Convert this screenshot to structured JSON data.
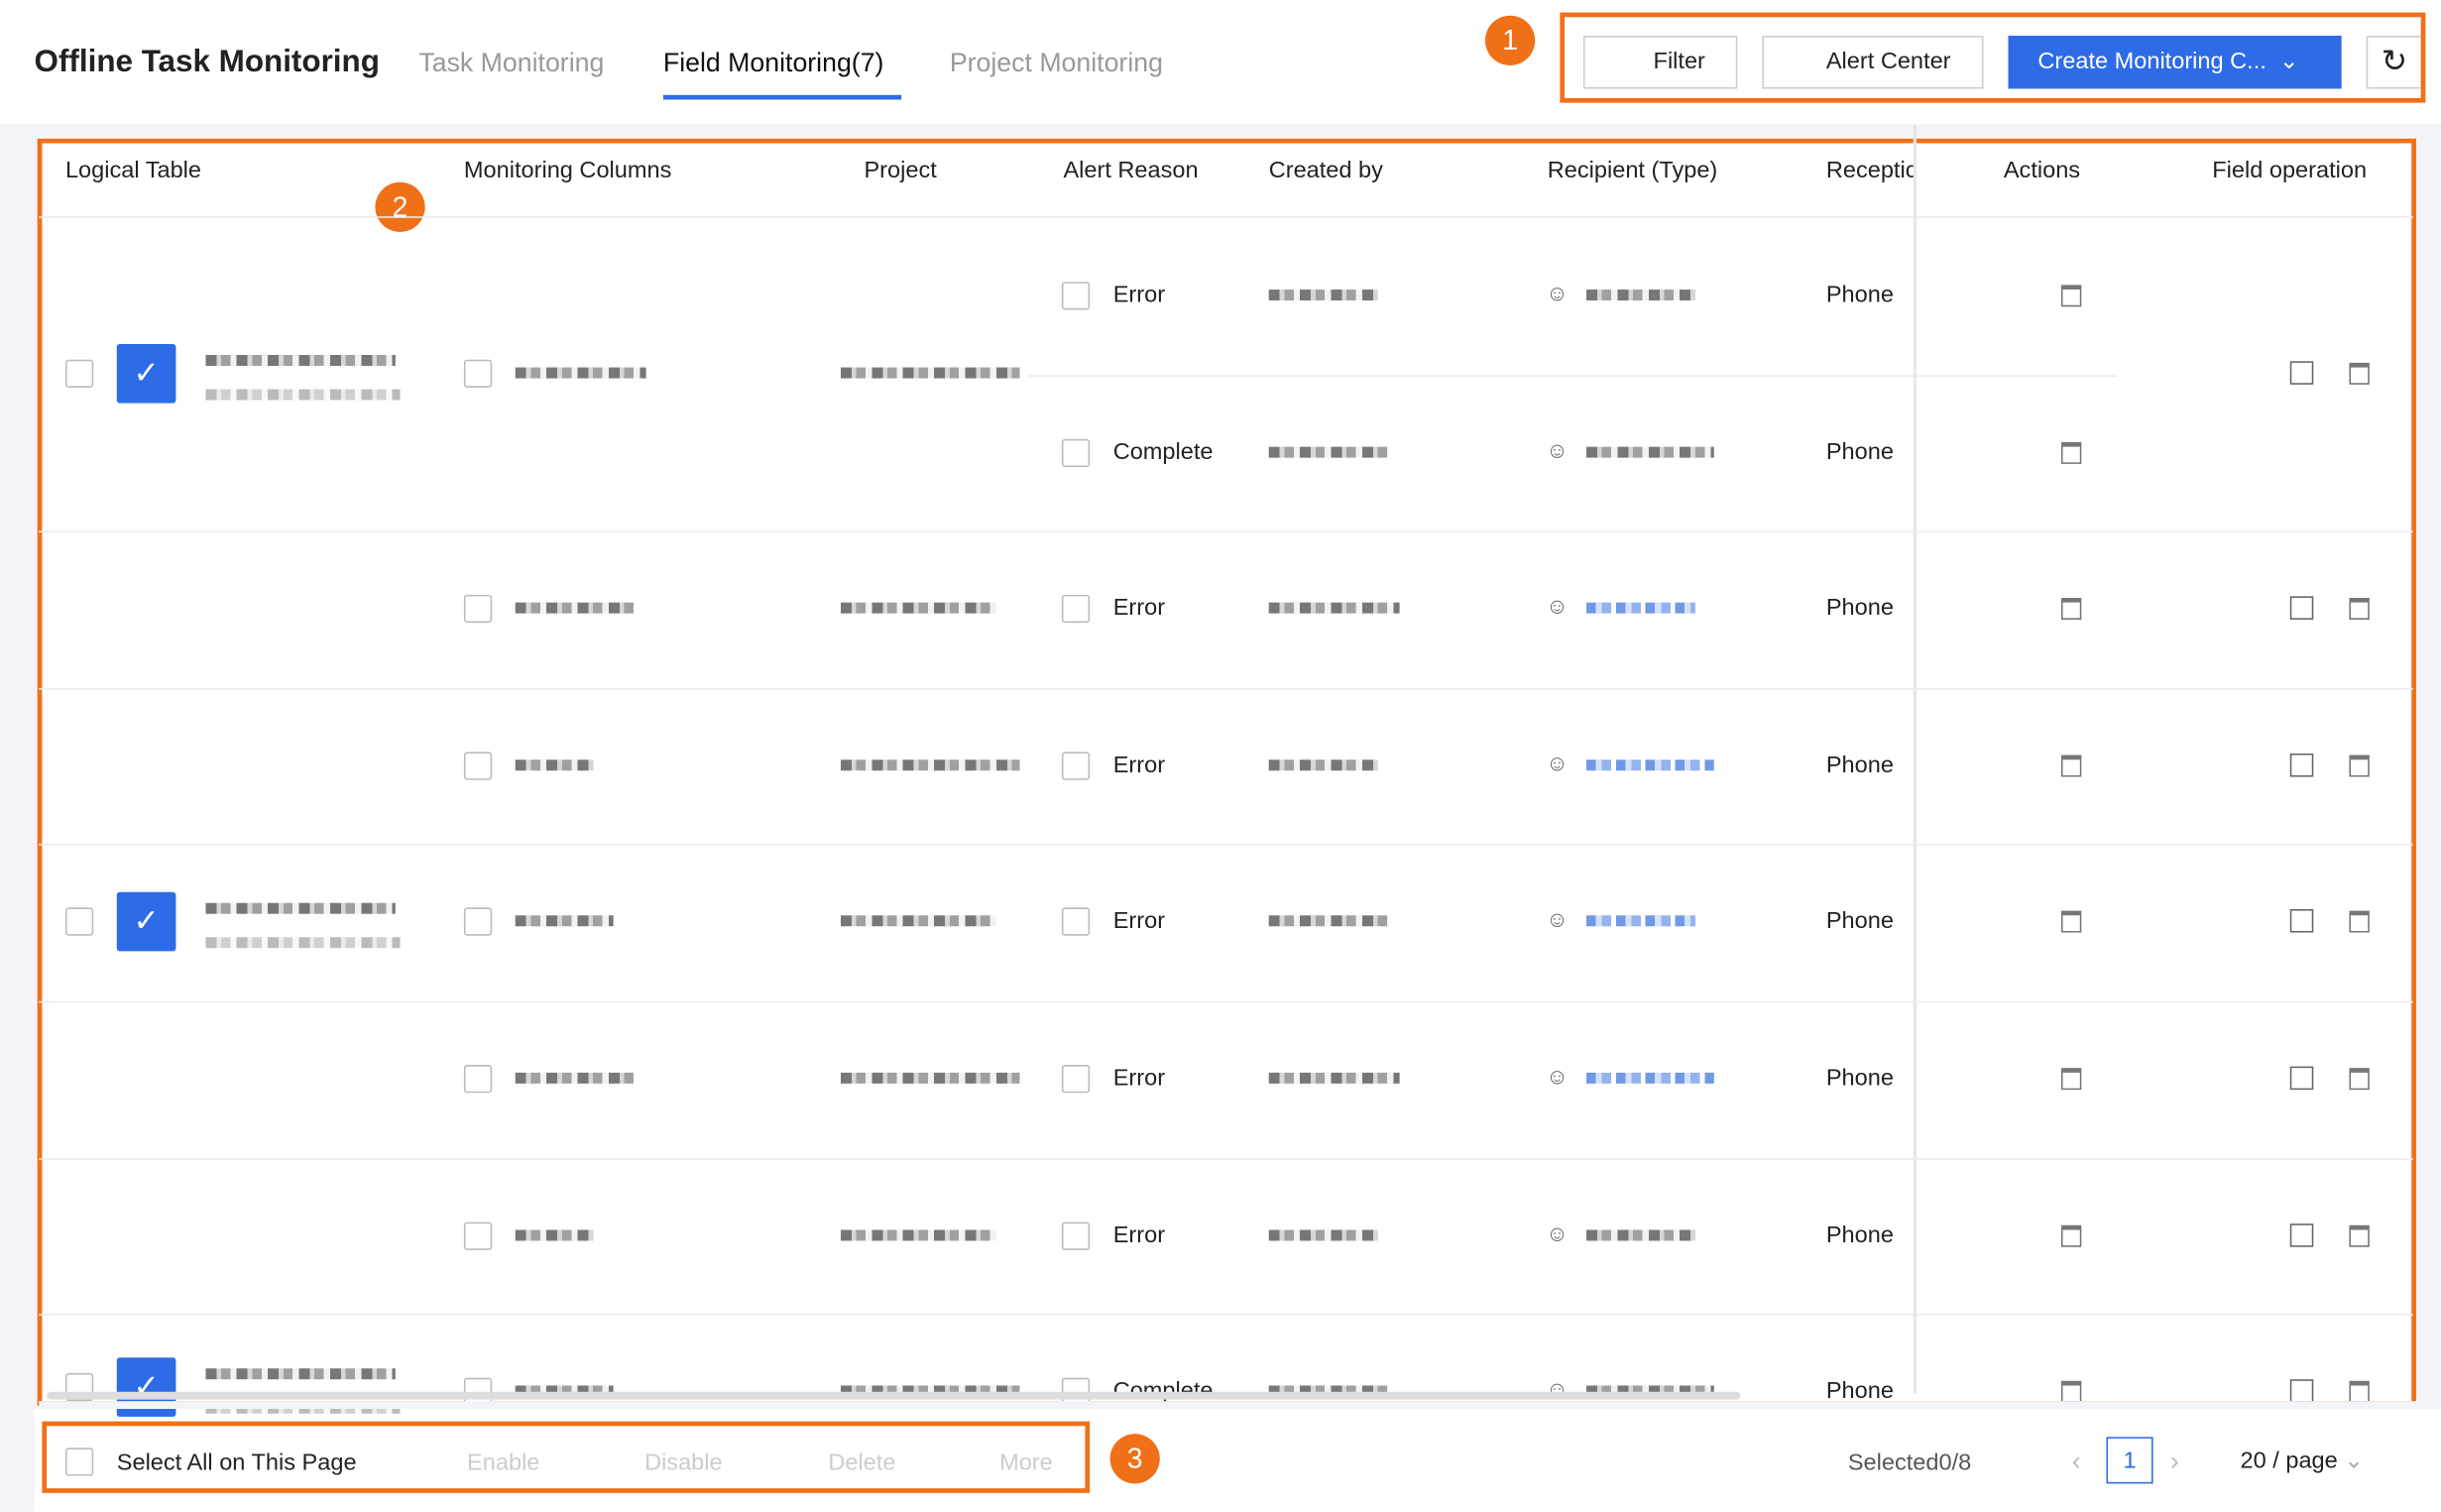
{
  "header": {
    "title": "Offline Task Monitoring",
    "tabs": [
      "Task Monitoring",
      "Field Monitoring(7)",
      "Project Monitoring"
    ],
    "buttons": {
      "filter": "Filter",
      "alert_center": "Alert Center",
      "create": "Create Monitoring C..."
    }
  },
  "annotations": [
    "1",
    "2",
    "3"
  ],
  "table": {
    "columns": [
      "Logical Table",
      "Monitoring Columns",
      "Project",
      "Alert Reason",
      "Created by",
      "Recipient (Type)",
      "Receptic",
      "Actions",
      "Field operation"
    ],
    "rows": [
      {
        "alert_reason": "Error",
        "reception": "Phone"
      },
      {
        "alert_reason": "Complete",
        "reception": "Phone"
      },
      {
        "alert_reason": "Error",
        "reception": "Phone"
      },
      {
        "alert_reason": "Error",
        "reception": "Phone"
      },
      {
        "alert_reason": "Error",
        "reception": "Phone"
      },
      {
        "alert_reason": "Error",
        "reception": "Phone"
      },
      {
        "alert_reason": "Error",
        "reception": "Phone"
      },
      {
        "alert_reason": "Complete",
        "reception": "Phone"
      }
    ]
  },
  "footer": {
    "select_all": "Select All on This Page",
    "actions": [
      "Enable",
      "Disable",
      "Delete",
      "More"
    ],
    "selected": "Selected0/8",
    "page": "1",
    "page_size": "20 / page"
  }
}
